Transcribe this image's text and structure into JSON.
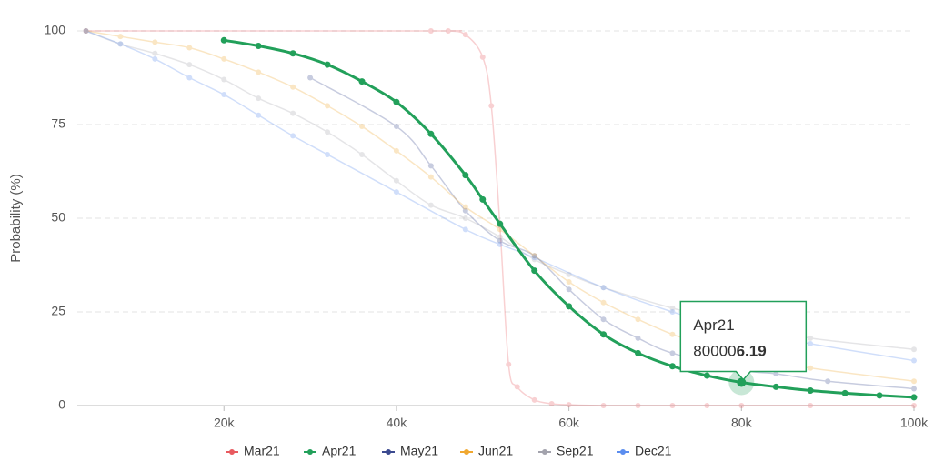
{
  "chart_data": {
    "type": "line",
    "y_label": "Probability (%)",
    "xlim": [
      3000,
      100000
    ],
    "xticks": [
      {
        "value": 20000,
        "label": "20k"
      },
      {
        "value": 40000,
        "label": "40k"
      },
      {
        "value": 60000,
        "label": "60k"
      },
      {
        "value": 80000,
        "label": "80k"
      },
      {
        "value": 100000,
        "label": "100k"
      }
    ],
    "ylim": [
      0,
      100
    ],
    "yticks": [
      0,
      25,
      50,
      75,
      100
    ],
    "grid": true,
    "legend": "bottom",
    "highlight": "Apr21",
    "series": [
      {
        "name": "Mar21",
        "color": "#e85a5f",
        "x": [
          4000,
          44000,
          46000,
          48000,
          50000,
          51000,
          52000,
          53000,
          54000,
          56000,
          58000,
          60000,
          64000,
          68000,
          72000,
          76000,
          80000,
          88000,
          100000
        ],
        "values": [
          100,
          100,
          100,
          99,
          93,
          80,
          48,
          11,
          5,
          1.5,
          0.5,
          0.2,
          0,
          0,
          0,
          0,
          0,
          0,
          0
        ]
      },
      {
        "name": "Apr21",
        "color": "#22a05a",
        "x": [
          20000,
          24000,
          28000,
          32000,
          36000,
          40000,
          44000,
          48000,
          50000,
          52000,
          56000,
          60000,
          64000,
          68000,
          72000,
          76000,
          80000,
          84000,
          88000,
          92000,
          96000,
          100000
        ],
        "values": [
          97.5,
          96,
          94,
          91,
          86.5,
          81,
          72.5,
          61.5,
          55,
          48.5,
          36,
          26.5,
          19,
          14,
          10.5,
          8,
          6.19,
          5,
          4,
          3.3,
          2.7,
          2.2
        ]
      },
      {
        "name": "May21",
        "color": "#3b4a8f",
        "x": [
          30000,
          40000,
          44000,
          48000,
          52000,
          56000,
          60000,
          64000,
          68000,
          72000,
          80000,
          84000,
          90000,
          100000
        ],
        "values": [
          87.5,
          74.5,
          64,
          52,
          44,
          40,
          31,
          23,
          18,
          14,
          9.5,
          8.5,
          6.5,
          4.5
        ]
      },
      {
        "name": "Jun21",
        "color": "#f0a830",
        "x": [
          4000,
          8000,
          12000,
          16000,
          20000,
          24000,
          28000,
          32000,
          36000,
          40000,
          44000,
          48000,
          52000,
          56000,
          60000,
          64000,
          68000,
          72000,
          76000,
          80000,
          88000,
          100000
        ],
        "values": [
          100,
          98.5,
          97,
          95.5,
          92.5,
          89,
          85,
          80,
          74.5,
          68,
          61,
          53,
          47,
          40,
          33,
          27.5,
          23,
          19,
          16,
          13,
          10,
          6.5
        ]
      },
      {
        "name": "Sep21",
        "color": "#a3a3ad",
        "x": [
          4000,
          8000,
          12000,
          16000,
          20000,
          24000,
          28000,
          32000,
          36000,
          40000,
          44000,
          48000,
          52000,
          56000,
          60000,
          64000,
          72000,
          80000,
          88000,
          100000
        ],
        "values": [
          100,
          96.5,
          94,
          91,
          87,
          82,
          78,
          73,
          67,
          60,
          53.5,
          50,
          45,
          39,
          35,
          31.5,
          26,
          21.5,
          18,
          15
        ]
      },
      {
        "name": "Dec21",
        "color": "#5b8def",
        "x": [
          4000,
          8000,
          12000,
          16000,
          20000,
          24000,
          28000,
          32000,
          40000,
          48000,
          52000,
          56000,
          64000,
          72000,
          80000,
          88000,
          100000
        ],
        "values": [
          100,
          96.5,
          92.5,
          87.5,
          83,
          77.5,
          72,
          67,
          57,
          47,
          43,
          39.5,
          31.5,
          25,
          20,
          16.5,
          12
        ]
      }
    ],
    "tooltip": {
      "series": 1,
      "point": 16
    }
  }
}
